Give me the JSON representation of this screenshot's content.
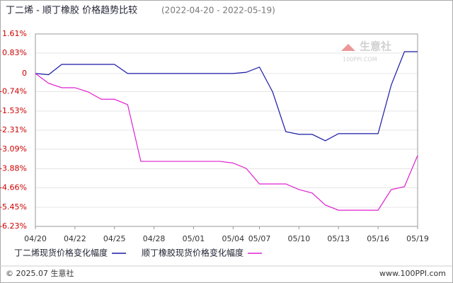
{
  "chart_data": {
    "type": "line",
    "title": "丁二烯 - 顺丁橡胶 价格趋势比较",
    "subtitle": "(2022-04-20 - 2022-05-19)",
    "categories": [
      "04/20",
      null,
      null,
      "04/22",
      null,
      null,
      "04/25",
      null,
      null,
      "04/28",
      null,
      null,
      "05/01",
      null,
      null,
      "05/04",
      null,
      "05/07",
      null,
      null,
      "05/10",
      null,
      null,
      "05/13",
      null,
      null,
      "05/16",
      null,
      null,
      "05/19"
    ],
    "series": [
      {
        "name": "丁二烯现货价格变化幅度",
        "color": "#1a1aa6",
        "values": [
          0,
          -0.05,
          0.37,
          0.37,
          0.37,
          0.37,
          0.37,
          0,
          0,
          0,
          0,
          0,
          0,
          0,
          0,
          0,
          0.05,
          0.26,
          -0.75,
          -2.37,
          -2.48,
          -2.48,
          -2.74,
          -2.45,
          -2.45,
          -2.45,
          -2.45,
          -0.47,
          0.89,
          0.89
        ]
      },
      {
        "name": "顺丁橡胶现货价格变化幅度",
        "color": "#e020d0",
        "values": [
          0,
          -0.4,
          -0.58,
          -0.58,
          -0.75,
          -1.05,
          -1.05,
          -1.27,
          -3.58,
          -3.58,
          -3.58,
          -3.58,
          -3.58,
          -3.58,
          -3.58,
          -3.65,
          -3.87,
          -4.5,
          -4.5,
          -4.5,
          -4.73,
          -4.87,
          -5.36,
          -5.57,
          -5.57,
          -5.57,
          -5.57,
          -4.73,
          -4.61,
          -3.34
        ]
      }
    ],
    "ylim": [
      -6.23,
      1.61
    ],
    "yticks": [
      {
        "value": 1.61,
        "label": "1.61%"
      },
      {
        "value": 0.83,
        "label": "0.83%"
      },
      0,
      {
        "value": -0.74,
        "label": "-0.74%"
      },
      {
        "value": -1.53,
        "label": "-1.53%"
      },
      {
        "value": -2.31,
        "label": "-2.31%"
      },
      {
        "value": -3.09,
        "label": "-3.09%"
      },
      {
        "value": -3.88,
        "label": "-3.88%"
      },
      {
        "value": -4.66,
        "label": "-4.66%"
      },
      {
        "value": -5.45,
        "label": "-5.45%"
      },
      {
        "value": -6.23,
        "label": "-6.23%"
      }
    ],
    "grid": true
  },
  "watermark": {
    "name": "生意社",
    "site": "100PPI.COM"
  },
  "footer": {
    "left": "© 2025.07 生意社",
    "right": "www.100PPI.com"
  }
}
